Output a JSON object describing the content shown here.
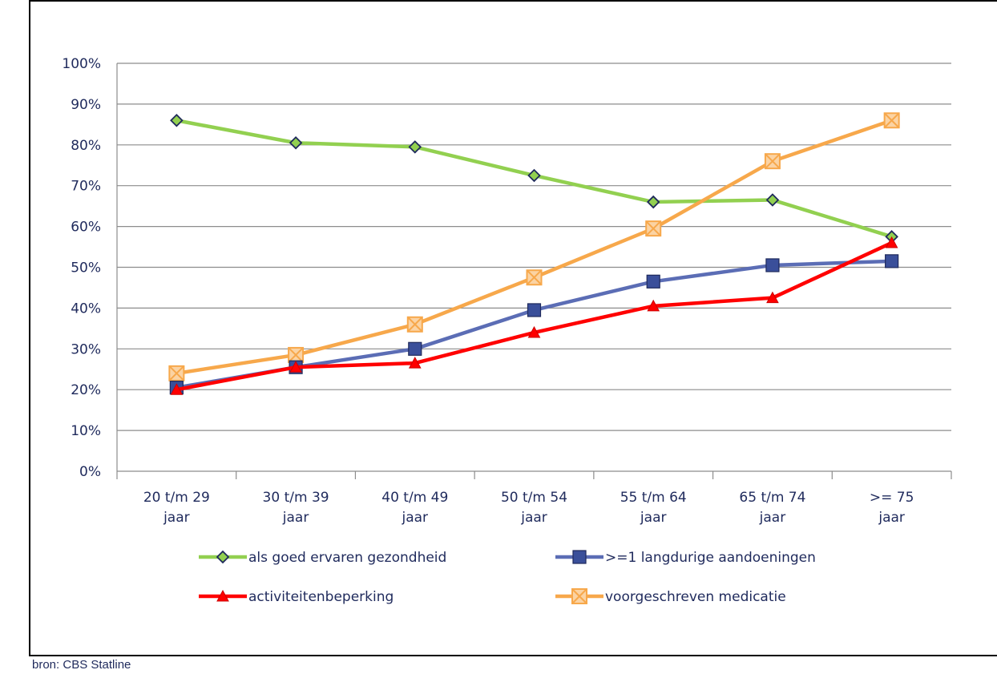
{
  "source_note": "bron: CBS Statline",
  "chart_data": {
    "type": "line",
    "title": "",
    "xlabel": "",
    "ylabel": "",
    "categories": [
      [
        "20 t/m 29",
        "jaar"
      ],
      [
        "30 t/m 39",
        "jaar"
      ],
      [
        "40 t/m 49",
        "jaar"
      ],
      [
        "50 t/m 54",
        "jaar"
      ],
      [
        "55 t/m 64",
        "jaar"
      ],
      [
        "65 t/m 74",
        "jaar"
      ],
      [
        ">= 75",
        "jaar"
      ]
    ],
    "ylim": [
      0,
      100
    ],
    "yticks": [
      0,
      10,
      20,
      30,
      40,
      50,
      60,
      70,
      80,
      90,
      100
    ],
    "ytick_labels": [
      "0%",
      "10%",
      "20%",
      "30%",
      "40%",
      "50%",
      "60%",
      "70%",
      "80%",
      "90%",
      "100%"
    ],
    "grid": true,
    "legend_position": "bottom",
    "series": [
      {
        "name": "als goed ervaren gezondheid",
        "color": "#92d050",
        "marker": "diamond",
        "marker_fill": "#92d050",
        "marker_stroke": "#1f2a5c",
        "values": [
          86,
          80.5,
          79.5,
          72.5,
          66,
          66.5,
          57.5
        ]
      },
      {
        "name": ">=1 langdurige aandoeningen",
        "color": "#5b6db5",
        "marker": "square",
        "marker_fill": "#3a4f9a",
        "marker_stroke": "#1f2a5c",
        "values": [
          20.5,
          25.5,
          30,
          39.5,
          46.5,
          50.5,
          51.5
        ]
      },
      {
        "name": "activiteitenbeperking",
        "color": "#ff0000",
        "marker": "triangle",
        "marker_fill": "#ff0000",
        "marker_stroke": "#cc0000",
        "values": [
          20,
          25.5,
          26.5,
          34,
          40.5,
          42.5,
          56
        ]
      },
      {
        "name": "voorgeschreven medicatie",
        "color": "#f7a84b",
        "marker": "xsquare",
        "marker_fill": "#f7a84b",
        "marker_stroke": "#f7a84b",
        "values": [
          24,
          28.5,
          36,
          47.5,
          59.5,
          76,
          86
        ]
      }
    ]
  }
}
